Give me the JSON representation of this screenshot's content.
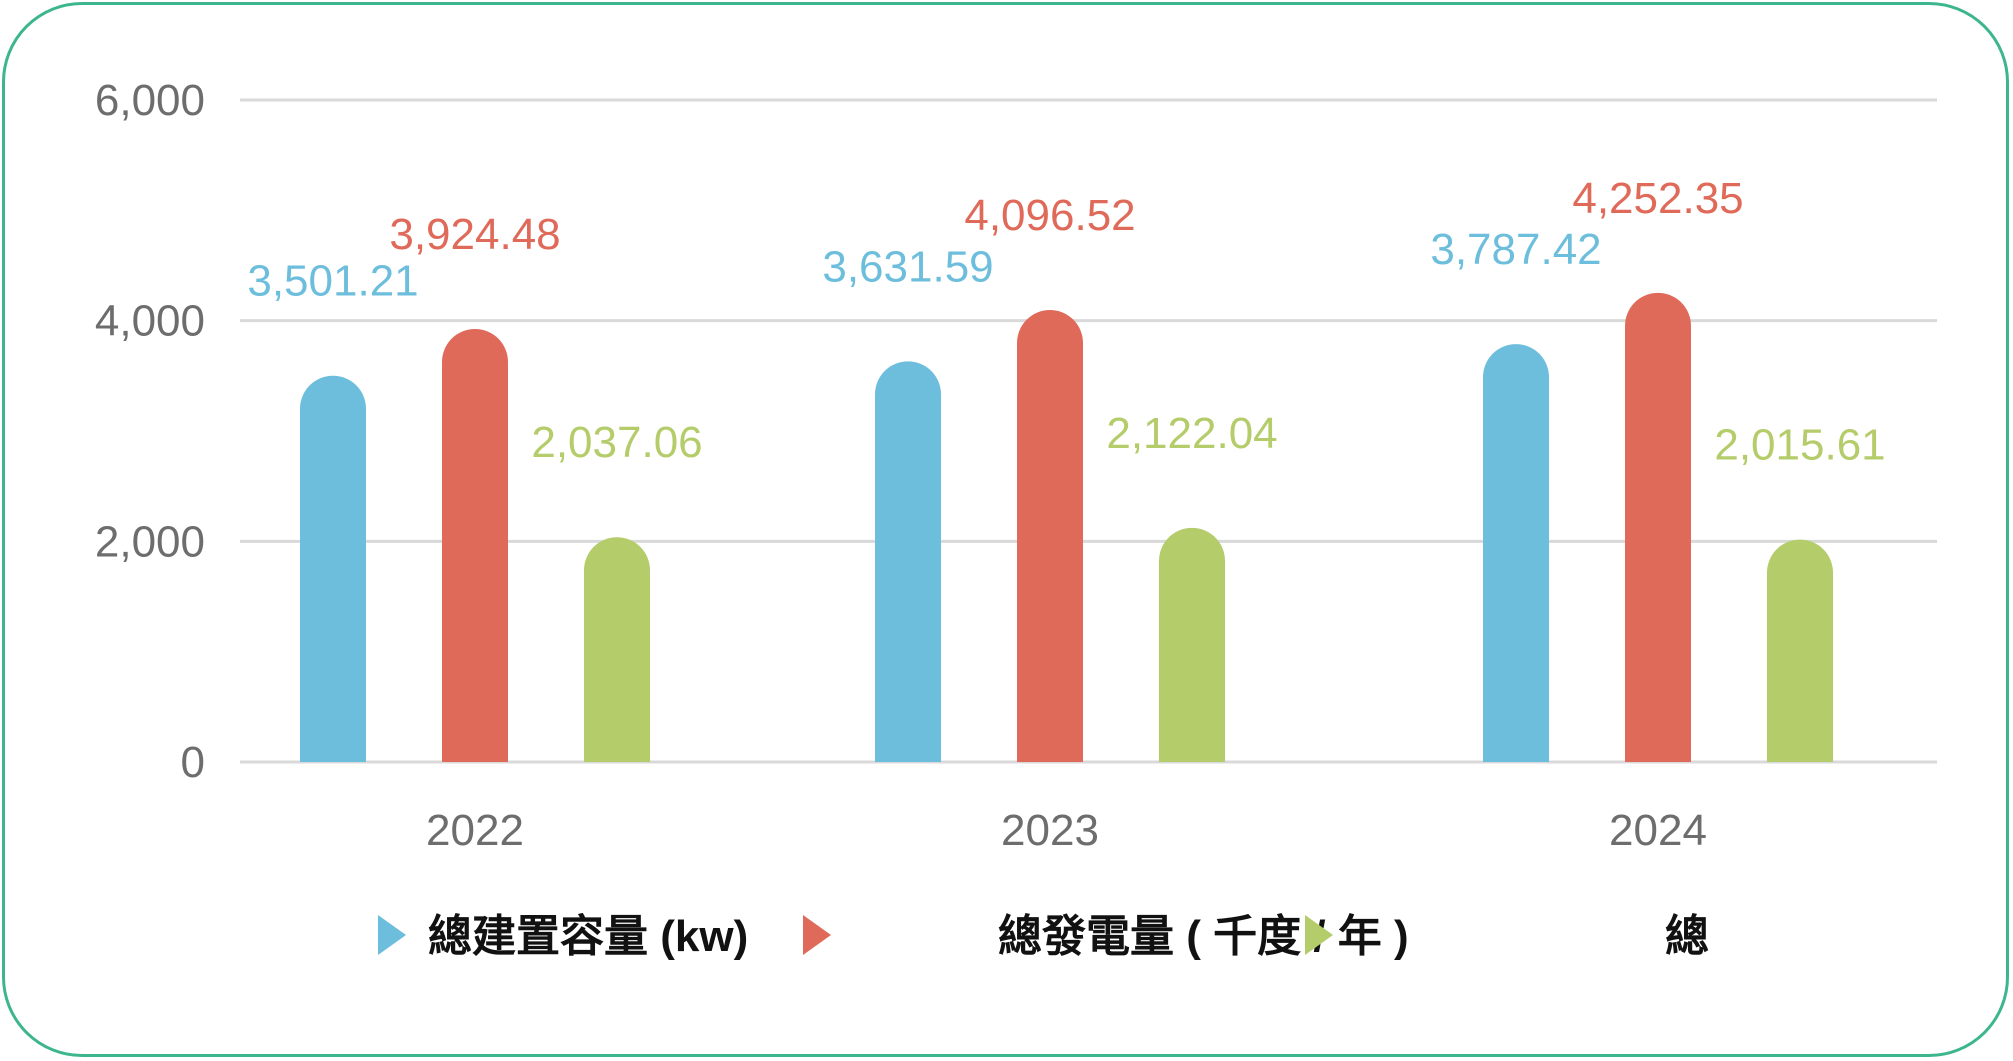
{
  "chart_data": {
    "type": "bar",
    "categories": [
      "2022",
      "2023",
      "2024"
    ],
    "series": [
      {
        "name": "總建置容量 (kw)",
        "color": "#6dbedc",
        "values": [
          3501.21,
          3631.59,
          3787.42
        ],
        "labels": [
          "3,501.21",
          "3,631.59",
          "3,787.42"
        ]
      },
      {
        "name": "總發電量 ( 千度 / 年 )",
        "color": "#e06a5a",
        "values": [
          3924.48,
          4096.52,
          4252.35
        ],
        "labels": [
          "3,924.48",
          "4,096.52",
          "4,252.35"
        ]
      },
      {
        "name": "總",
        "color": "#b4cc6a",
        "values": [
          2037.06,
          2122.04,
          2015.61
        ],
        "labels": [
          "2,037.06",
          "2,122.04",
          "2,015.61"
        ]
      }
    ],
    "yticks": [
      0,
      2000,
      4000,
      6000
    ],
    "ytick_labels": [
      "0",
      "2,000",
      "4,000",
      "6,000"
    ],
    "ylim": [
      0,
      6000
    ],
    "grid": true,
    "legend_position": "bottom",
    "title": "",
    "xlabel": "",
    "ylabel": ""
  },
  "colors": {
    "frame": "#3db68f",
    "grid": "#d9d9d9",
    "axis_text": "#6d6d6d"
  }
}
